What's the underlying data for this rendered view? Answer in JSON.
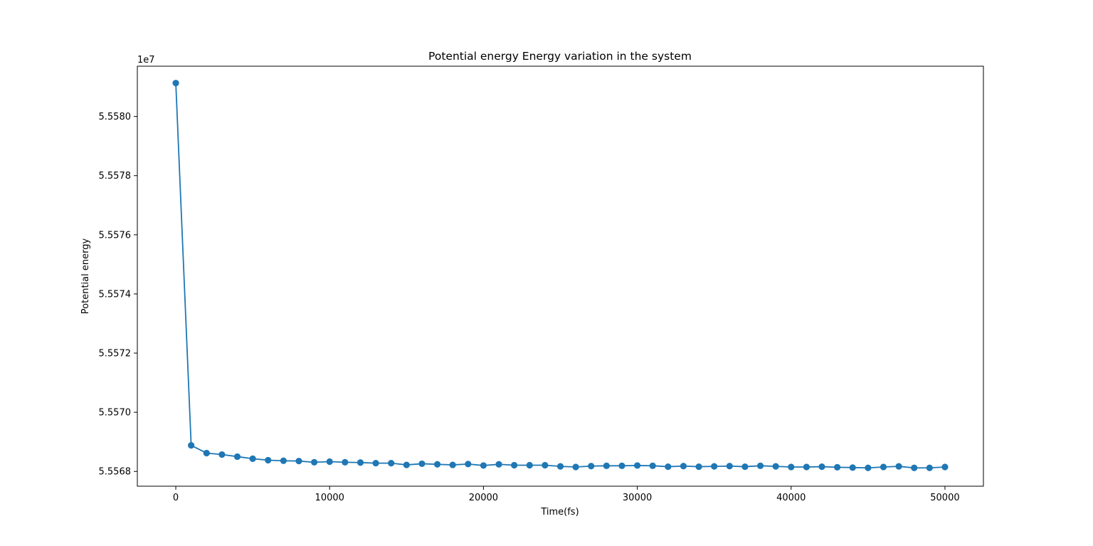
{
  "chart_data": {
    "type": "line",
    "title": "Potential energy Energy variation in the system",
    "xlabel": "Time(fs)",
    "ylabel": "Potential energy",
    "y_offset_label": "1e7",
    "xlim": [
      -2500,
      52500
    ],
    "ylim": [
      5.55675,
      5.55817
    ],
    "x_ticks": [
      0,
      10000,
      20000,
      30000,
      40000,
      50000
    ],
    "x_tick_labels": [
      "0",
      "10000",
      "20000",
      "30000",
      "40000",
      "50000"
    ],
    "y_ticks": [
      5.5568,
      5.557,
      5.5572,
      5.5574,
      5.5576,
      5.5578,
      5.558
    ],
    "y_tick_labels": [
      "5.5568",
      "5.5570",
      "5.5572",
      "5.5574",
      "5.5576",
      "5.5578",
      "5.5580"
    ],
    "grid": false,
    "marker": "circle",
    "line_color": "#1f77b4",
    "series": [
      {
        "x": [
          0,
          1000,
          2000,
          3000,
          4000,
          5000,
          6000,
          7000,
          8000,
          9000,
          10000,
          11000,
          12000,
          13000,
          14000,
          15000,
          16000,
          17000,
          18000,
          19000,
          20000,
          21000,
          22000,
          23000,
          24000,
          25000,
          26000,
          27000,
          28000,
          29000,
          30000,
          31000,
          32000,
          33000,
          34000,
          35000,
          36000,
          37000,
          38000,
          39000,
          40000,
          41000,
          42000,
          43000,
          44000,
          45000,
          46000,
          47000,
          48000,
          49000,
          50000
        ],
        "values": [
          5.558113,
          5.556888,
          5.556862,
          5.556857,
          5.55685,
          5.556843,
          5.556838,
          5.556836,
          5.556835,
          5.556831,
          5.556833,
          5.556831,
          5.55683,
          5.556828,
          5.556828,
          5.556822,
          5.556826,
          5.556824,
          5.556822,
          5.556825,
          5.55682,
          5.556824,
          5.556821,
          5.556821,
          5.556821,
          5.556817,
          5.556815,
          5.556818,
          5.556819,
          5.556819,
          5.55682,
          5.556819,
          5.556816,
          5.556818,
          5.556816,
          5.556817,
          5.556818,
          5.556816,
          5.556819,
          5.556817,
          5.556815,
          5.556815,
          5.556816,
          5.556814,
          5.556813,
          5.556812,
          5.556815,
          5.556817,
          5.556812,
          5.556812,
          5.556815
        ]
      }
    ]
  }
}
